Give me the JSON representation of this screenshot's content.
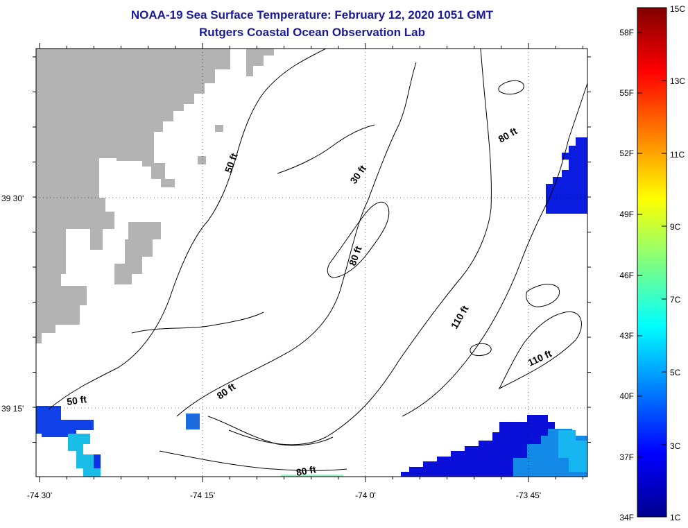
{
  "header": {
    "title": "NOAA-19 Sea Surface Temperature:  February 12, 2020 1051 GMT",
    "subtitle": "Rutgers Coastal Ocean Observation Lab"
  },
  "map": {
    "lon_labels": [
      "-74 30'",
      "-74 15'",
      "-74 0'",
      "-73 45'"
    ],
    "lat_labels": [
      "39 30'",
      "39 15'"
    ],
    "land_color": "#b3b3b3",
    "contour_labels": [
      {
        "id": "c50a",
        "text": "50 ft"
      },
      {
        "id": "c30",
        "text": "30 ft"
      },
      {
        "id": "c80a",
        "text": "80 ft"
      },
      {
        "id": "c80b",
        "text": "80 ft"
      },
      {
        "id": "c110a",
        "text": "110 ft"
      },
      {
        "id": "c110b",
        "text": "110 ft"
      },
      {
        "id": "c50b",
        "text": "50 ft"
      },
      {
        "id": "c80c",
        "text": "80 ft"
      },
      {
        "id": "c80d",
        "text": "80 ft"
      }
    ]
  },
  "colorbar": {
    "fahrenheit_labels": [
      "58F",
      "55F",
      "52F",
      "49F",
      "46F",
      "43F",
      "40F",
      "37F",
      "34F"
    ],
    "celsius_labels": [
      "15C",
      "13C",
      "11C",
      "9C",
      "7C",
      "5C",
      "3C",
      "1C"
    ]
  }
}
